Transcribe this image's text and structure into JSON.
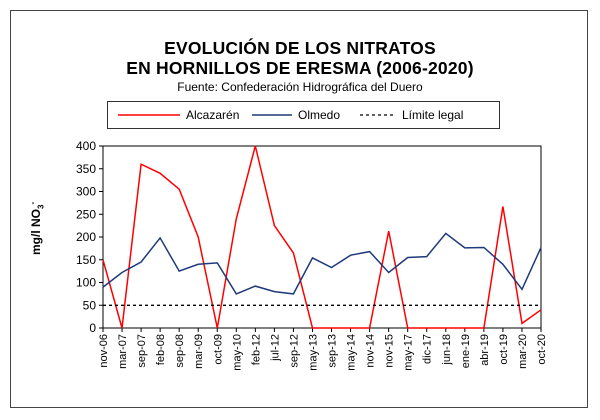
{
  "chart_data": {
    "type": "line",
    "title_line1": "EVOLUCIÓN DE LOS NITRATOS",
    "title_line2": "EN HORNILLOS DE ERESMA (2006-2020)",
    "subtitle": "Fuente: Confederación Hidrográfica del Duero",
    "ylabel": "mg/l NO",
    "ylabel_sub": "3",
    "ylabel_sup": "-",
    "ylim": [
      0,
      400
    ],
    "yticks": [
      0,
      50,
      100,
      150,
      200,
      250,
      300,
      350,
      400
    ],
    "x": [
      "nov-06",
      "mar-07",
      "sep-07",
      "feb-08",
      "sep-08",
      "mar-09",
      "oct-09",
      "may-10",
      "feb-12",
      "jul-12",
      "sep-12",
      "may-13",
      "sep-13",
      "may-14",
      "nov-14",
      "nov-15",
      "may-17",
      "dic-17",
      "jun-18",
      "ene-19",
      "abr-19",
      "oct-19",
      "mar-20",
      "oct-20"
    ],
    "legend_placement": "top",
    "series": [
      {
        "name": "Alcazarén",
        "color": "#ff0000",
        "style": "solid",
        "values": [
          150,
          0,
          360,
          340,
          305,
          200,
          0,
          240,
          400,
          225,
          165,
          0,
          0,
          0,
          0,
          213,
          0,
          0,
          0,
          0,
          0,
          267,
          10,
          40
        ]
      },
      {
        "name": "Olmedo",
        "color": "#1f3a7a",
        "style": "solid",
        "values": [
          90,
          122,
          145,
          198,
          125,
          140,
          143,
          75,
          92,
          80,
          75,
          154,
          133,
          160,
          168,
          122,
          155,
          157,
          208,
          176,
          177,
          140,
          85,
          177
        ]
      },
      {
        "name": "Límite legal",
        "color": "#000000",
        "style": "dashed",
        "values": [
          50,
          50,
          50,
          50,
          50,
          50,
          50,
          50,
          50,
          50,
          50,
          50,
          50,
          50,
          50,
          50,
          50,
          50,
          50,
          50,
          50,
          50,
          50,
          50
        ]
      }
    ]
  }
}
